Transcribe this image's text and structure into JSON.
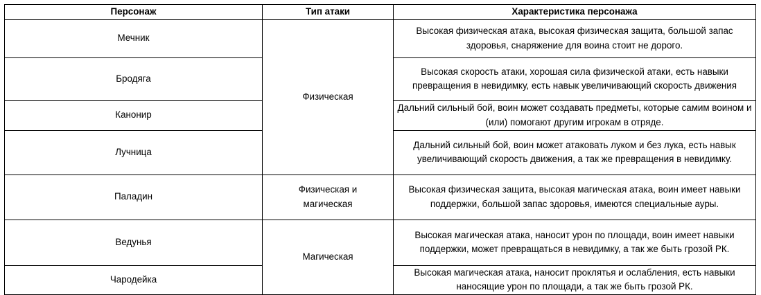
{
  "headers": [
    "Персонаж",
    "Тип атаки",
    "Характеристика персонажа"
  ],
  "attack_types": {
    "physical": "Физическая",
    "physical_magical": "Физическая и магическая",
    "magical": "Магическая"
  },
  "rows": [
    {
      "character": "Мечник",
      "description": "Высокая физическая атака, высокая физическая защита, большой запас здоровья, снаряжение для воина стоит не дорого."
    },
    {
      "character": "Бродяга",
      "description": "Высокая скорость атаки, хорошая сила физической атаки, есть навыки превращения в невидимку, есть навык увеличивающий скорость движения"
    },
    {
      "character": "Канонир",
      "description": "Дальний сильный бой, воин может создавать предметы, которые самим воином и (или) помогают другим игрокам в отряде."
    },
    {
      "character": "Лучница",
      "description": "Дальний сильный бой, воин может атаковать луком и без лука, есть навык увеличивающий скорость движения, а так же превращения в невидимку."
    },
    {
      "character": "Паладин",
      "description": "Высокая физическая защита, высокая  магическая атака, воин имеет навыки поддержки, большой запас здоровья, имеются специальные ауры."
    },
    {
      "character": "Ведунья",
      "description": "Высокая магическая атака, наносит урон по площади, воин имеет навыки поддержки, может превращаться в невидимку, а так же быть грозой РК."
    },
    {
      "character": "Чародейка",
      "description": "Высокая магическая атака, наносит проклятья и ослабления, есть навыки наносящие урон по площади, а так же быть грозой РК."
    }
  ]
}
